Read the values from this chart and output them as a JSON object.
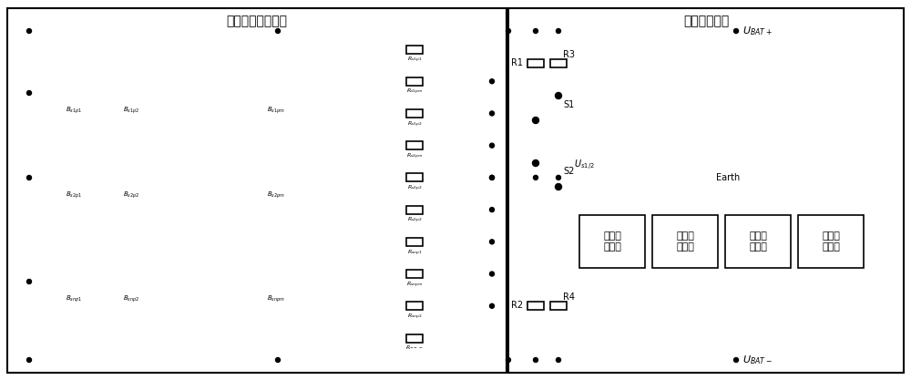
{
  "title_left": "电池簇及电池笱体",
  "title_right": "绶缘检测电路",
  "bg": "#ffffff",
  "lc": "black",
  "lw": 1.2,
  "bat_labels": [
    "$B_{s1p1}$",
    "$B_{s1p2}$",
    "$B_{s1pm}$",
    "$B_{s2p1}$",
    "$B_{s2p2}$",
    "$B_{s2pm}$",
    "$B_{snp1}$",
    "$B_{snp2}$",
    "$B_{snpm}$"
  ],
  "res_labels_left": [
    "$R_{s1p1}$",
    "$R_{s1pm}$",
    "$R_{s1p2}$",
    "$R_{s2pm}$",
    "$R_{s2p2}$",
    "$R_{s2p2}$",
    "$R_{snp1}$",
    "$R_{snpm}$",
    "$R_{snp2}$",
    "$R_{---}$"
  ],
  "block_labels": [
    "电压检\n测模块",
    "采样运\n放电路",
    "数字处\n理模块",
    "故障报\n警模块"
  ],
  "label_UBAT_pos": "$U_{BAT+}$",
  "label_UBAT_neg": "$U_{BAT-}$",
  "label_Us12": "$U_{s1/2}$",
  "label_Earth": "Earth",
  "label_R1": "R1",
  "label_R2": "R2",
  "label_R3": "R3",
  "label_R4": "R4",
  "label_S1": "S1",
  "label_S2": "S2"
}
